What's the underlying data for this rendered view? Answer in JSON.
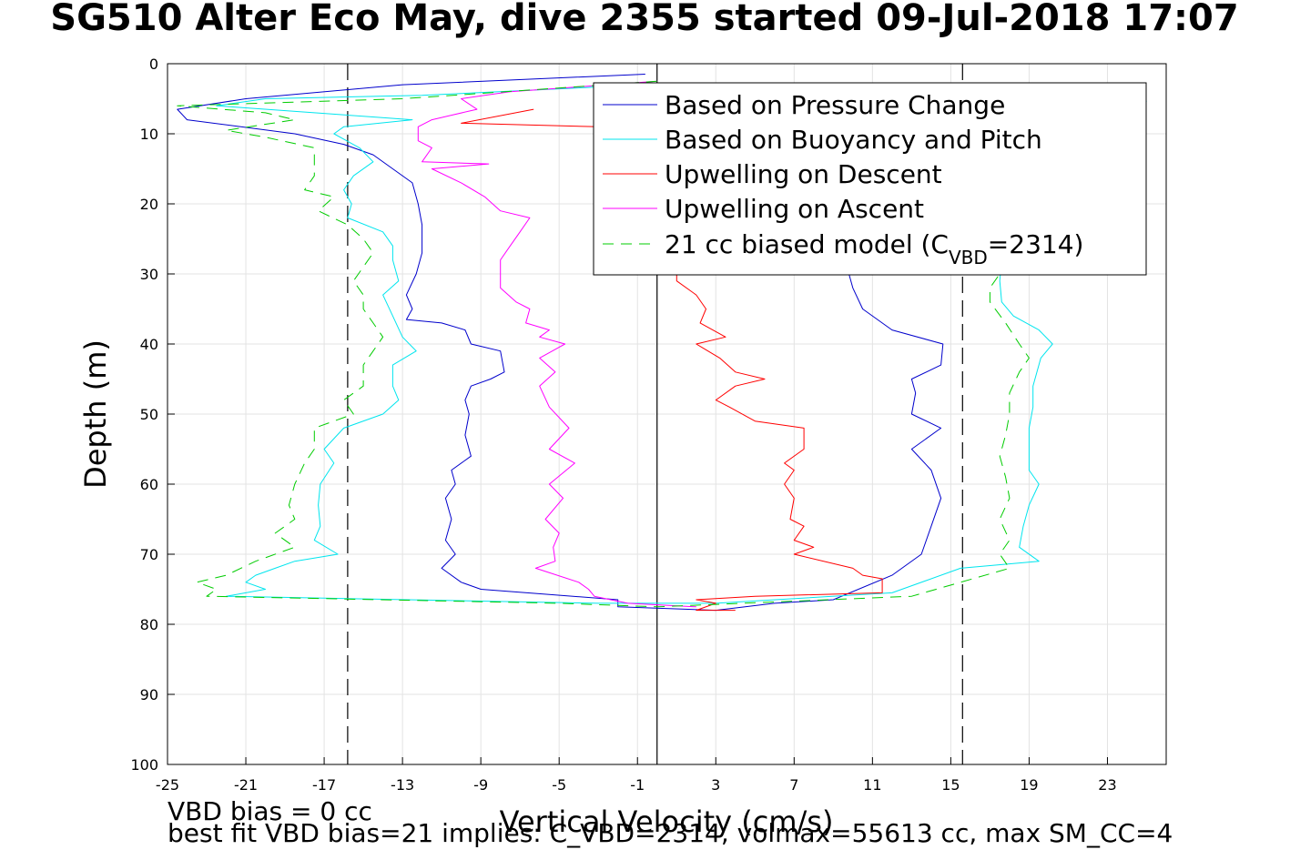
{
  "title": "SG510 Alter Eco May, dive 2355 started 09-Jul-2018 17:07",
  "footer": {
    "line1": "VBD bias = 0 cc",
    "line2": "best fit VBD bias=21 implies: C_VBD=2314, volmax=55613 cc, max SM_CC=4"
  },
  "chart_data": {
    "type": "line",
    "xlabel": "Vertical Velocity (cm/s)",
    "ylabel": "Depth (m)",
    "xlim": [
      -25,
      26
    ],
    "ylim": [
      0,
      100
    ],
    "y_reversed": true,
    "xticks": [
      -25,
      -21,
      -17,
      -13,
      -9,
      -5,
      -1,
      3,
      7,
      11,
      15,
      19,
      23
    ],
    "yticks": [
      0,
      10,
      20,
      30,
      40,
      50,
      60,
      70,
      80,
      90,
      100
    ],
    "grid": true,
    "legend_position": "top-right",
    "reference_lines": [
      {
        "x": 0,
        "style": "solid",
        "color": "#000000"
      },
      {
        "x": -15.8,
        "style": "dashed",
        "color": "#000000"
      },
      {
        "x": 15.6,
        "style": "dashed",
        "color": "#000000"
      }
    ],
    "series": [
      {
        "name": "Based on Pressure Change",
        "color": "#0000cc",
        "dash": false,
        "points": [
          [
            -0.6,
            1.5
          ],
          [
            -13,
            3
          ],
          [
            -21,
            5
          ],
          [
            -24.5,
            6.5
          ],
          [
            -24,
            8
          ],
          [
            -18.5,
            10
          ],
          [
            -16,
            11.5
          ],
          [
            -14.5,
            13
          ],
          [
            -13.5,
            15
          ],
          [
            -12.5,
            17
          ],
          [
            -12.2,
            20
          ],
          [
            -12,
            23
          ],
          [
            -12,
            27
          ],
          [
            -12.3,
            30
          ],
          [
            -12.8,
            33
          ],
          [
            -12.5,
            35
          ],
          [
            -12.8,
            36.5
          ],
          [
            -11,
            37
          ],
          [
            -9.8,
            38
          ],
          [
            -9.5,
            40
          ],
          [
            -8,
            41
          ],
          [
            -7.8,
            44
          ],
          [
            -8.5,
            45
          ],
          [
            -9.5,
            46
          ],
          [
            -9.8,
            48
          ],
          [
            -9.6,
            50
          ],
          [
            -9.8,
            53
          ],
          [
            -9.5,
            56
          ],
          [
            -10.5,
            58
          ],
          [
            -10.3,
            60
          ],
          [
            -10.8,
            62
          ],
          [
            -10.5,
            65
          ],
          [
            -10.8,
            68
          ],
          [
            -10.3,
            70
          ],
          [
            -11,
            72
          ],
          [
            -10,
            74
          ],
          [
            -9,
            75
          ],
          [
            -2,
            76.5
          ],
          [
            -2,
            77.5
          ],
          [
            3,
            78
          ],
          [
            6,
            77
          ],
          [
            9,
            76.5
          ],
          [
            12,
            73
          ],
          [
            13.5,
            70
          ],
          [
            14,
            66
          ],
          [
            14.5,
            62
          ],
          [
            14,
            58
          ],
          [
            13,
            55
          ],
          [
            14.5,
            52
          ],
          [
            13,
            50
          ],
          [
            13.2,
            47
          ],
          [
            13,
            45
          ],
          [
            14.5,
            43
          ],
          [
            14.6,
            40
          ],
          [
            12,
            38
          ],
          [
            10.5,
            35
          ],
          [
            10,
            32
          ],
          [
            9.8,
            30
          ],
          [
            10,
            26
          ]
        ]
      },
      {
        "name": "Based on Buoyancy and Pitch",
        "color": "#00e5ee",
        "dash": false,
        "points": [
          [
            -0.5,
            3
          ],
          [
            -12,
            4.5
          ],
          [
            -20,
            5
          ],
          [
            -22.5,
            6
          ],
          [
            -17.5,
            7
          ],
          [
            -12.5,
            8
          ],
          [
            -16,
            9
          ],
          [
            -16.5,
            10
          ],
          [
            -15.2,
            12
          ],
          [
            -14.5,
            14
          ],
          [
            -15.5,
            16
          ],
          [
            -16,
            18
          ],
          [
            -15.6,
            20
          ],
          [
            -15.8,
            22
          ],
          [
            -14,
            24
          ],
          [
            -13.5,
            26
          ],
          [
            -13.5,
            28
          ],
          [
            -13.2,
            31
          ],
          [
            -14,
            33
          ],
          [
            -13.5,
            36
          ],
          [
            -13,
            39
          ],
          [
            -12.3,
            41
          ],
          [
            -13.5,
            43
          ],
          [
            -13.5,
            46
          ],
          [
            -13.2,
            48
          ],
          [
            -14,
            50
          ],
          [
            -16,
            52
          ],
          [
            -17,
            55
          ],
          [
            -16.5,
            57
          ],
          [
            -17.2,
            60
          ],
          [
            -17.3,
            63
          ],
          [
            -17.2,
            66
          ],
          [
            -17.5,
            68
          ],
          [
            -16.3,
            70
          ],
          [
            -18.5,
            71
          ],
          [
            -19.5,
            72
          ],
          [
            -20.5,
            73
          ],
          [
            -21,
            74
          ],
          [
            -20,
            75
          ],
          [
            -22,
            76
          ],
          [
            -3,
            77
          ],
          [
            3,
            77
          ],
          [
            12,
            75.5
          ],
          [
            15.5,
            72
          ],
          [
            19.5,
            71
          ],
          [
            18.5,
            69
          ],
          [
            18.7,
            66
          ],
          [
            19,
            63
          ],
          [
            19.5,
            60
          ],
          [
            19,
            58
          ],
          [
            19,
            55
          ],
          [
            19,
            52
          ],
          [
            19.2,
            49
          ],
          [
            19.2,
            46
          ],
          [
            19.6,
            42
          ],
          [
            20.2,
            40
          ],
          [
            19.5,
            38
          ],
          [
            18.2,
            36
          ],
          [
            17.6,
            34
          ],
          [
            17.5,
            31
          ],
          [
            17.6,
            28
          ],
          [
            18.5,
            25
          ],
          [
            25,
            5.3
          ]
        ]
      },
      {
        "name": "Upwelling on Descent",
        "color": "#ff0000",
        "dash": false,
        "points": [
          [
            -6.3,
            6.5
          ],
          [
            -10,
            8.5
          ],
          [
            -3,
            9
          ],
          [
            1,
            10
          ],
          [
            1,
            31
          ],
          [
            2,
            33
          ],
          [
            2.5,
            35
          ],
          [
            2.2,
            37
          ],
          [
            3.5,
            39
          ],
          [
            2,
            40
          ],
          [
            3.2,
            42
          ],
          [
            4,
            44
          ],
          [
            5.5,
            45
          ],
          [
            4,
            46
          ],
          [
            3,
            48
          ],
          [
            3.7,
            49
          ],
          [
            5,
            51
          ],
          [
            7.5,
            52
          ],
          [
            7.5,
            55
          ],
          [
            6.5,
            57
          ],
          [
            7,
            58
          ],
          [
            6.5,
            60
          ],
          [
            7,
            62
          ],
          [
            6.8,
            65
          ],
          [
            7.5,
            66
          ],
          [
            7,
            68
          ],
          [
            8,
            69
          ],
          [
            7,
            70
          ],
          [
            10,
            72
          ],
          [
            10.5,
            73
          ],
          [
            11.5,
            73.5
          ],
          [
            11.5,
            75.5
          ],
          [
            5,
            76
          ],
          [
            2,
            76.5
          ],
          [
            3,
            77
          ],
          [
            2,
            78
          ],
          [
            4,
            78
          ]
        ]
      },
      {
        "name": "Upwelling on Ascent",
        "color": "#ff00ff",
        "dash": false,
        "points": [
          [
            0,
            2.5
          ],
          [
            -5,
            3.5
          ],
          [
            -7.5,
            4
          ],
          [
            -10,
            5
          ],
          [
            -9.2,
            6.5
          ],
          [
            -11.5,
            8
          ],
          [
            -12.2,
            9
          ],
          [
            -12.2,
            11
          ],
          [
            -11.5,
            12
          ],
          [
            -12,
            14
          ],
          [
            -8.6,
            14.3
          ],
          [
            -11.5,
            15
          ],
          [
            -10,
            17
          ],
          [
            -8.8,
            19
          ],
          [
            -8,
            21
          ],
          [
            -6.5,
            22
          ],
          [
            -7,
            24
          ],
          [
            -7.5,
            26
          ],
          [
            -8,
            28
          ],
          [
            -8,
            32
          ],
          [
            -7.2,
            34
          ],
          [
            -6.5,
            35
          ],
          [
            -6.7,
            37
          ],
          [
            -5.5,
            38
          ],
          [
            -6,
            39
          ],
          [
            -4.7,
            40
          ],
          [
            -6,
            42
          ],
          [
            -5.2,
            44
          ],
          [
            -6,
            46
          ],
          [
            -5.5,
            49
          ],
          [
            -4.5,
            52
          ],
          [
            -5.5,
            55
          ],
          [
            -4.2,
            57
          ],
          [
            -5.5,
            60
          ],
          [
            -4.8,
            62
          ],
          [
            -5.7,
            65
          ],
          [
            -5,
            67
          ],
          [
            -5.3,
            69
          ],
          [
            -5.2,
            71
          ],
          [
            -6.2,
            72
          ],
          [
            -4,
            74
          ],
          [
            -3.5,
            75
          ],
          [
            -3.2,
            76
          ],
          [
            -1.5,
            77
          ],
          [
            2,
            77.5
          ]
        ]
      },
      {
        "name": "21 cc biased model (C_VBD=2314)",
        "color": "#00cc00",
        "dash": true,
        "points": [
          [
            0,
            2.5
          ],
          [
            -13,
            5
          ],
          [
            -24.5,
            6
          ],
          [
            -20,
            7
          ],
          [
            -18.5,
            8
          ],
          [
            -22,
            9.5
          ],
          [
            -20,
            10.5
          ],
          [
            -17.5,
            12
          ],
          [
            -17.5,
            14
          ],
          [
            -17.5,
            16
          ],
          [
            -18,
            18
          ],
          [
            -16.5,
            19
          ],
          [
            -17.3,
            21
          ],
          [
            -15.8,
            23
          ],
          [
            -15,
            25
          ],
          [
            -14.5,
            27
          ],
          [
            -15,
            29
          ],
          [
            -15.5,
            31
          ],
          [
            -15,
            33
          ],
          [
            -15,
            35
          ],
          [
            -14.5,
            37
          ],
          [
            -14,
            39
          ],
          [
            -14.5,
            41
          ],
          [
            -15,
            43
          ],
          [
            -15,
            46
          ],
          [
            -16,
            48
          ],
          [
            -15.5,
            50
          ],
          [
            -17.5,
            52
          ],
          [
            -17.5,
            55
          ],
          [
            -18,
            57
          ],
          [
            -18.5,
            60
          ],
          [
            -18.8,
            63
          ],
          [
            -18.5,
            65
          ],
          [
            -19.5,
            67
          ],
          [
            -18.5,
            69
          ],
          [
            -20.5,
            71
          ],
          [
            -22,
            73
          ],
          [
            -23.5,
            74
          ],
          [
            -22.5,
            75
          ],
          [
            -23,
            76
          ],
          [
            -5,
            77
          ],
          [
            0,
            77.5
          ],
          [
            13,
            76
          ],
          [
            18,
            72
          ],
          [
            17.5,
            70
          ],
          [
            18,
            68
          ],
          [
            17.5,
            65
          ],
          [
            18,
            62
          ],
          [
            17.8,
            59
          ],
          [
            17.5,
            56
          ],
          [
            17.8,
            53
          ],
          [
            18,
            50
          ],
          [
            18,
            47
          ],
          [
            18.5,
            44
          ],
          [
            19,
            42
          ],
          [
            18.5,
            40
          ],
          [
            17.8,
            37
          ],
          [
            17,
            34
          ],
          [
            17,
            32
          ],
          [
            17.5,
            30
          ],
          [
            17.8,
            28
          ],
          [
            17.5,
            26
          ]
        ]
      }
    ]
  }
}
